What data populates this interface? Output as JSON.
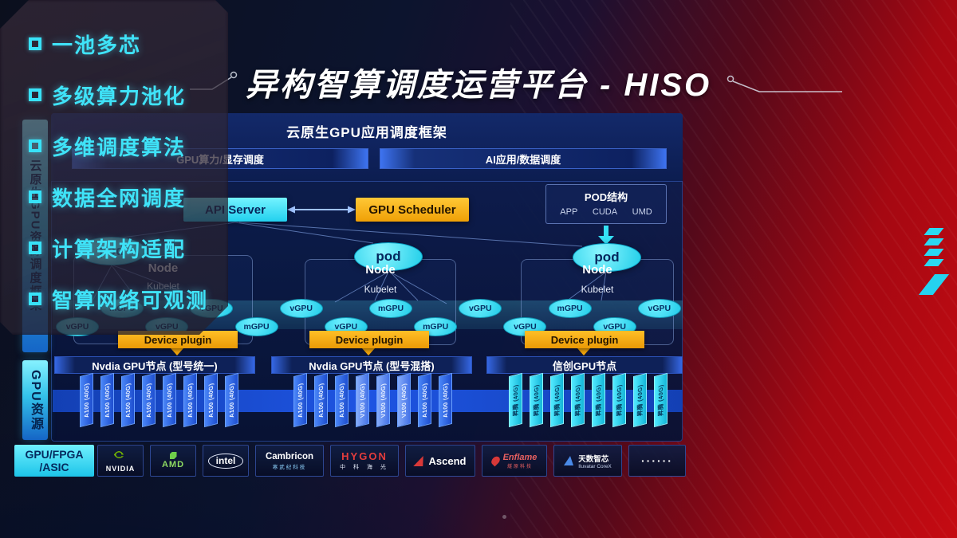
{
  "title": "异构智算调度运营平台 - HISO",
  "sidebar": {
    "top_bar": "云原生GPU资源调度框架",
    "bottom_bar": "GPU资源"
  },
  "framework": {
    "title": "云原生GPU应用调度框架",
    "left_bar": "GPU算力/显存调度",
    "right_bar": "AI应用/数据调度"
  },
  "control_plane": {
    "api_server": "API Server",
    "gpu_scheduler": "GPU Scheduler"
  },
  "pod_struct": {
    "title": "POD结构",
    "items": [
      "APP",
      "CUDA",
      "UMD"
    ]
  },
  "node_groups": [
    {
      "pod": "pod",
      "node": "Node",
      "agent": "Kubelet",
      "plugin": "Device plugin",
      "bar": "Nvdia GPU节点 (型号统一)",
      "cards": [
        "A100 (40G)",
        "A100 (40G)",
        "A100 (40G)",
        "A100 (40G)",
        "A100 (40G)",
        "A100 (40G)",
        "A100 (40G)",
        "A100 (40G)"
      ]
    },
    {
      "pod": "pod",
      "node": "Node",
      "agent": "Kubelet",
      "plugin": "Device plugin",
      "bar": "Nvdia GPU节点 (型号混搭)",
      "cards": [
        "A100 (40G)",
        "A100 (40G)",
        "A100 (40G)",
        "V100 (40G)",
        "V100 (40G)",
        "V100 (40G)",
        "A100 (40G)",
        "A100 (40G)"
      ]
    },
    {
      "pod": "pod",
      "node": "Node",
      "agent": "Kubelet",
      "plugin": "Device plugin",
      "bar": "信创GPU节点",
      "cards": [
        "昇腾 (40G)",
        "昇腾 (40G)",
        "昇腾 (40G)",
        "昇腾 (40G)",
        "昇腾 (40G)",
        "昇腾 (40G)",
        "昇腾 (40G)",
        "昇腾 (40G)"
      ]
    }
  ],
  "gpu_pool": [
    "vGPU",
    "mGPU",
    "vGPU",
    "vGPU",
    "mGPU",
    "vGPU",
    "vGPU",
    "mGPU",
    "mGPU",
    "vGPU",
    "vGPU",
    "mGPU",
    "vGPU",
    "vGPU"
  ],
  "vendor_row": {
    "category_line1": "GPU/FPGA",
    "category_line2": "/ASIC",
    "logos": [
      {
        "name": "NVIDIA",
        "sub": ""
      },
      {
        "name": "AMD",
        "sub": ""
      },
      {
        "name": "intel",
        "sub": ""
      },
      {
        "name": "Cambricon",
        "sub": "寒武纪科技"
      },
      {
        "name": "HYGON",
        "sub": "中 科 海 光"
      },
      {
        "name": "Ascend",
        "sub": ""
      },
      {
        "name": "Enflame",
        "sub": "燧原科技"
      },
      {
        "name": "天数智芯",
        "sub": "Iluvatar CoreX"
      },
      {
        "name": "······",
        "sub": ""
      }
    ]
  },
  "features": [
    "一池多芯",
    "多级算力池化",
    "多维调度算法",
    "数据全网调度",
    "计算架构适配",
    "智算网络可观测"
  ],
  "colors": {
    "accent_cyan": "#3ae8fa",
    "accent_orange": "#f6ad0a",
    "panel_navy": "#0d1f55",
    "nvidia_green": "#76b900",
    "logo_red": "#e23c3c",
    "card_blue": "#2e62e8",
    "bg_red": "#c50b12"
  }
}
